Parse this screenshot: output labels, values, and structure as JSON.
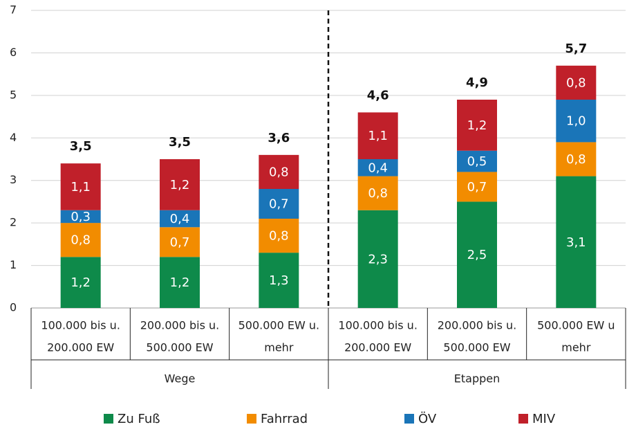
{
  "chart_data": {
    "type": "stacked_bar",
    "categories": [
      [
        "100.000 bis u.",
        "200.000 EW"
      ],
      [
        "200.000 bis u.",
        "500.000 EW"
      ],
      [
        "500.000 EW u.",
        "mehr"
      ],
      [
        "100.000 bis u.",
        "200.000 EW"
      ],
      [
        "200.000 bis u.",
        "500.000 EW"
      ],
      [
        "500.000 EW u",
        "mehr"
      ]
    ],
    "groups": [
      "Wege",
      "Etappen"
    ],
    "series": [
      {
        "name": "Zu Fuß",
        "color": "#0e8a4a",
        "values": [
          1.2,
          1.2,
          1.3,
          2.3,
          2.5,
          3.1
        ],
        "value_labels": [
          "1,2",
          "1,2",
          "1,3",
          "2,3",
          "2,5",
          "3,1"
        ]
      },
      {
        "name": "Fahrrad",
        "color": "#f28c00",
        "values": [
          0.8,
          0.7,
          0.8,
          0.8,
          0.7,
          0.8
        ],
        "value_labels": [
          "0,8",
          "0,7",
          "0,8",
          "0,8",
          "0,7",
          "0,8"
        ]
      },
      {
        "name": "ÖV",
        "color": "#1a75b8",
        "values": [
          0.3,
          0.4,
          0.7,
          0.4,
          0.5,
          1.0
        ],
        "value_labels": [
          "0,3",
          "0,4",
          "0,7",
          "0,4",
          "0,5",
          "1,0"
        ]
      },
      {
        "name": "MIV",
        "color": "#c0202a",
        "values": [
          1.1,
          1.2,
          0.8,
          1.1,
          1.2,
          0.8
        ],
        "value_labels": [
          "1,1",
          "1,2",
          "0,8",
          "1,1",
          "1,2",
          "0,8"
        ]
      }
    ],
    "totals": [
      3.5,
      3.5,
      3.6,
      4.6,
      4.9,
      5.7
    ],
    "total_labels": [
      "3,5",
      "3,5",
      "3,6",
      "4,6",
      "4,9",
      "5,7"
    ],
    "ylim": [
      0,
      7
    ],
    "yticks": [
      0,
      1,
      2,
      3,
      4,
      5,
      6,
      7
    ],
    "grid": true,
    "legend": "bottom"
  }
}
